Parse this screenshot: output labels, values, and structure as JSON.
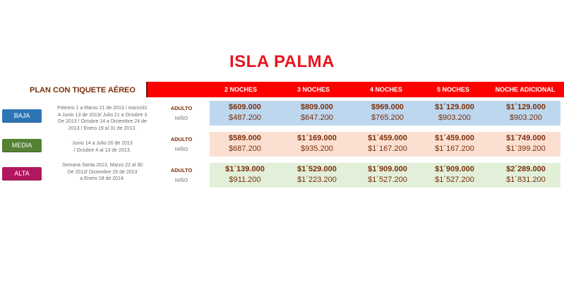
{
  "title": "ISLA PALMA",
  "plan_label": "PLAN CON TIQUETE   AÉREO",
  "headers": [
    "2 NOCHES",
    "3 NOCHES",
    "4 NOCHES",
    "5 NOCHES",
    "NOCHE ADICIONAL"
  ],
  "adult_label": "ADULTO",
  "child_label": "NIÑO",
  "seasons": [
    {
      "name": "BAJA",
      "color": "#2e75b6",
      "band_color": "#bdd7ee",
      "dates": [
        "Febrero  1 a Marzo 21 de 2013 / marzo31",
        "A Junio 13 de 2013/ Julio 21 a Octubre 3",
        "De 2013 / Octubre 14 a Diciembre  24 de",
        "2013 / Enero  19 al 31 de 2013."
      ],
      "adult": [
        "$609.000",
        "$809.000",
        "$969.000",
        "$1´129.000",
        "$1´129.000"
      ],
      "child": [
        "$487.200",
        "$647.200",
        "$765.200",
        "$903.200",
        "$903.200"
      ]
    },
    {
      "name": "MEDIA",
      "color": "#548235",
      "band_color": "#fbe0d2",
      "dates": [
        "Junio 14 a Julio 20 de  2013",
        "/ Octubre 4 al 13 de 2013."
      ],
      "adult": [
        "$589.000",
        "$1´169.000",
        "$1´459.000",
        "$1´459.000",
        "$1´749.000"
      ],
      "child": [
        "$687.200",
        "$935.200",
        "$1´167.200",
        "$1´167.200",
        "$1´399.200"
      ]
    },
    {
      "name": "ALTA",
      "color": "#b3185e",
      "band_color": "#e2efd9",
      "dates": [
        "Semana  Santa  2013, Marzo 22 al 30",
        "De 2013/ Diciembre  25 de 2013",
        "a Enero 18 de 2014."
      ],
      "adult": [
        "$1´139.000",
        "$1´529.000",
        "$1´909.000",
        "$1´909.000",
        "$2´289.000"
      ],
      "child": [
        "$911.200",
        "$1´223.200",
        "$1´527.200",
        "$1´527.200",
        "$1´831.200"
      ]
    }
  ]
}
